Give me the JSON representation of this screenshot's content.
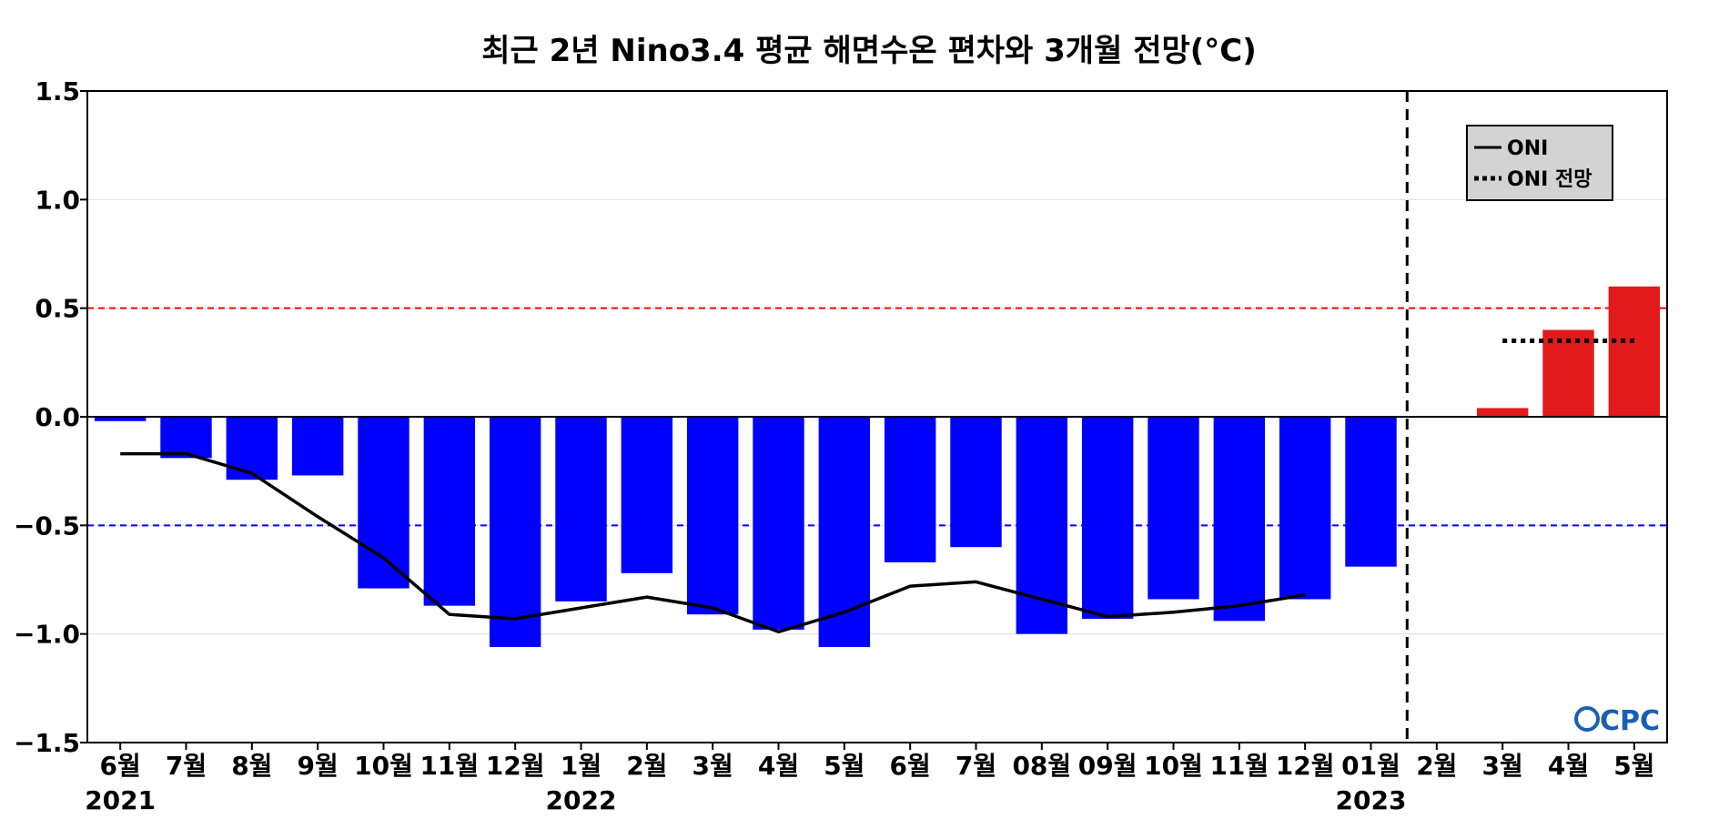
{
  "chart_data": {
    "type": "bar",
    "title": "최근 2년 Nino3.4 평균 해면수온 편차와 3개월 전망(°C)",
    "categories": [
      "6월",
      "7월",
      "8월",
      "9월",
      "10월",
      "11월",
      "12월",
      "1월",
      "2월",
      "3월",
      "4월",
      "5월",
      "6월",
      "7월",
      "08월",
      "09월",
      "10월",
      "11월",
      "12월",
      "01월",
      "2월",
      "3월",
      "4월",
      "5월"
    ],
    "year_labels": [
      {
        "index": 0,
        "label": "2021"
      },
      {
        "index": 7,
        "label": "2022"
      },
      {
        "index": 19,
        "label": "2023"
      }
    ],
    "ylim": [
      -1.5,
      1.5
    ],
    "yticks": [
      1.5,
      1.0,
      0.5,
      0.0,
      -0.5,
      -1.0,
      -1.5
    ],
    "ytick_labels": [
      "1.5",
      "1.0",
      "0.5",
      "0.0",
      "−0.5",
      "−1.0",
      "−1.5"
    ],
    "grid": true,
    "series": [
      {
        "kind": "bar",
        "color": "#0000ff",
        "values": [
          -0.02,
          -0.19,
          -0.29,
          -0.27,
          -0.79,
          -0.87,
          -1.06,
          -0.85,
          -0.72,
          -0.91,
          -0.98,
          -1.06,
          -0.67,
          -0.6,
          -1.0,
          -0.93,
          -0.84,
          -0.94,
          -0.84,
          -0.69,
          null,
          null,
          null,
          null
        ]
      },
      {
        "kind": "bar",
        "color": "#e31a1c",
        "values": [
          null,
          null,
          null,
          null,
          null,
          null,
          null,
          null,
          null,
          null,
          null,
          null,
          null,
          null,
          null,
          null,
          null,
          null,
          null,
          null,
          null,
          0.04,
          0.4,
          0.6
        ]
      },
      {
        "kind": "line",
        "name": "ONI",
        "color": "#000000",
        "values": [
          -0.17,
          -0.17,
          -0.26,
          -0.46,
          -0.65,
          -0.91,
          -0.93,
          -0.88,
          -0.83,
          -0.88,
          -0.99,
          -0.9,
          -0.78,
          -0.76,
          -0.84,
          -0.92,
          -0.9,
          -0.87,
          -0.82,
          null,
          null,
          null,
          null,
          null
        ]
      },
      {
        "kind": "dotted-line",
        "name": "ONI 전망",
        "color": "#000000",
        "x_start": 21,
        "x_end": 23,
        "y": 0.35
      }
    ],
    "reference_lines": [
      {
        "y": 0.5,
        "color": "#ff0000",
        "style": "dashed"
      },
      {
        "y": -0.5,
        "color": "#0000ff",
        "style": "dashed"
      },
      {
        "y": 0.0,
        "color": "#000000",
        "style": "solid"
      }
    ],
    "divider": {
      "after_index": 19,
      "color": "#000000",
      "style": "dashed"
    },
    "legend": {
      "placement": "top-right",
      "entries": [
        "ONI",
        "ONI 전망"
      ]
    },
    "logo_text": "CPC"
  }
}
